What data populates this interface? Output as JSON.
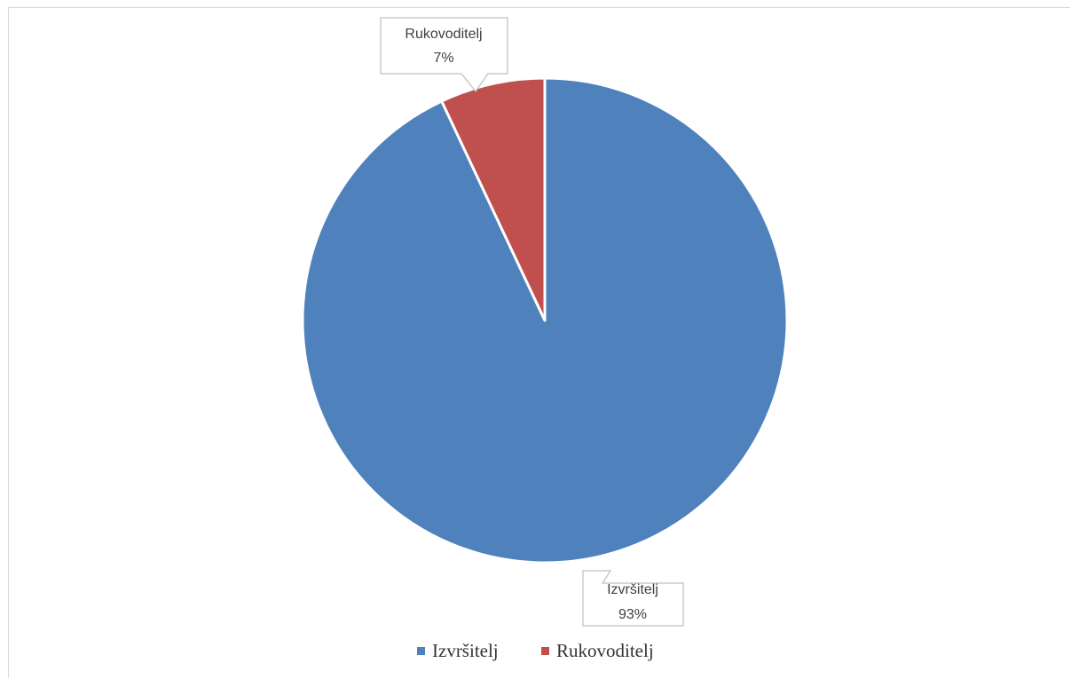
{
  "chart_data": {
    "type": "pie",
    "title": "",
    "slices": [
      {
        "label": "Izvršitelj",
        "value": 93,
        "percent_label": "93%",
        "color": "#4f81bd"
      },
      {
        "label": "Rukovoditelj",
        "value": 7,
        "percent_label": "7%",
        "color": "#c0504d"
      }
    ],
    "legend": {
      "placement": "bottom",
      "items": [
        "Izvršitelj",
        "Rukovoditelj"
      ]
    },
    "data_labels": {
      "Rukovoditelj": {
        "name": "Rukovoditelj",
        "percent": "7%"
      },
      "Izvršitelj": {
        "name": "Izvršitelj",
        "percent": "93%"
      }
    }
  }
}
